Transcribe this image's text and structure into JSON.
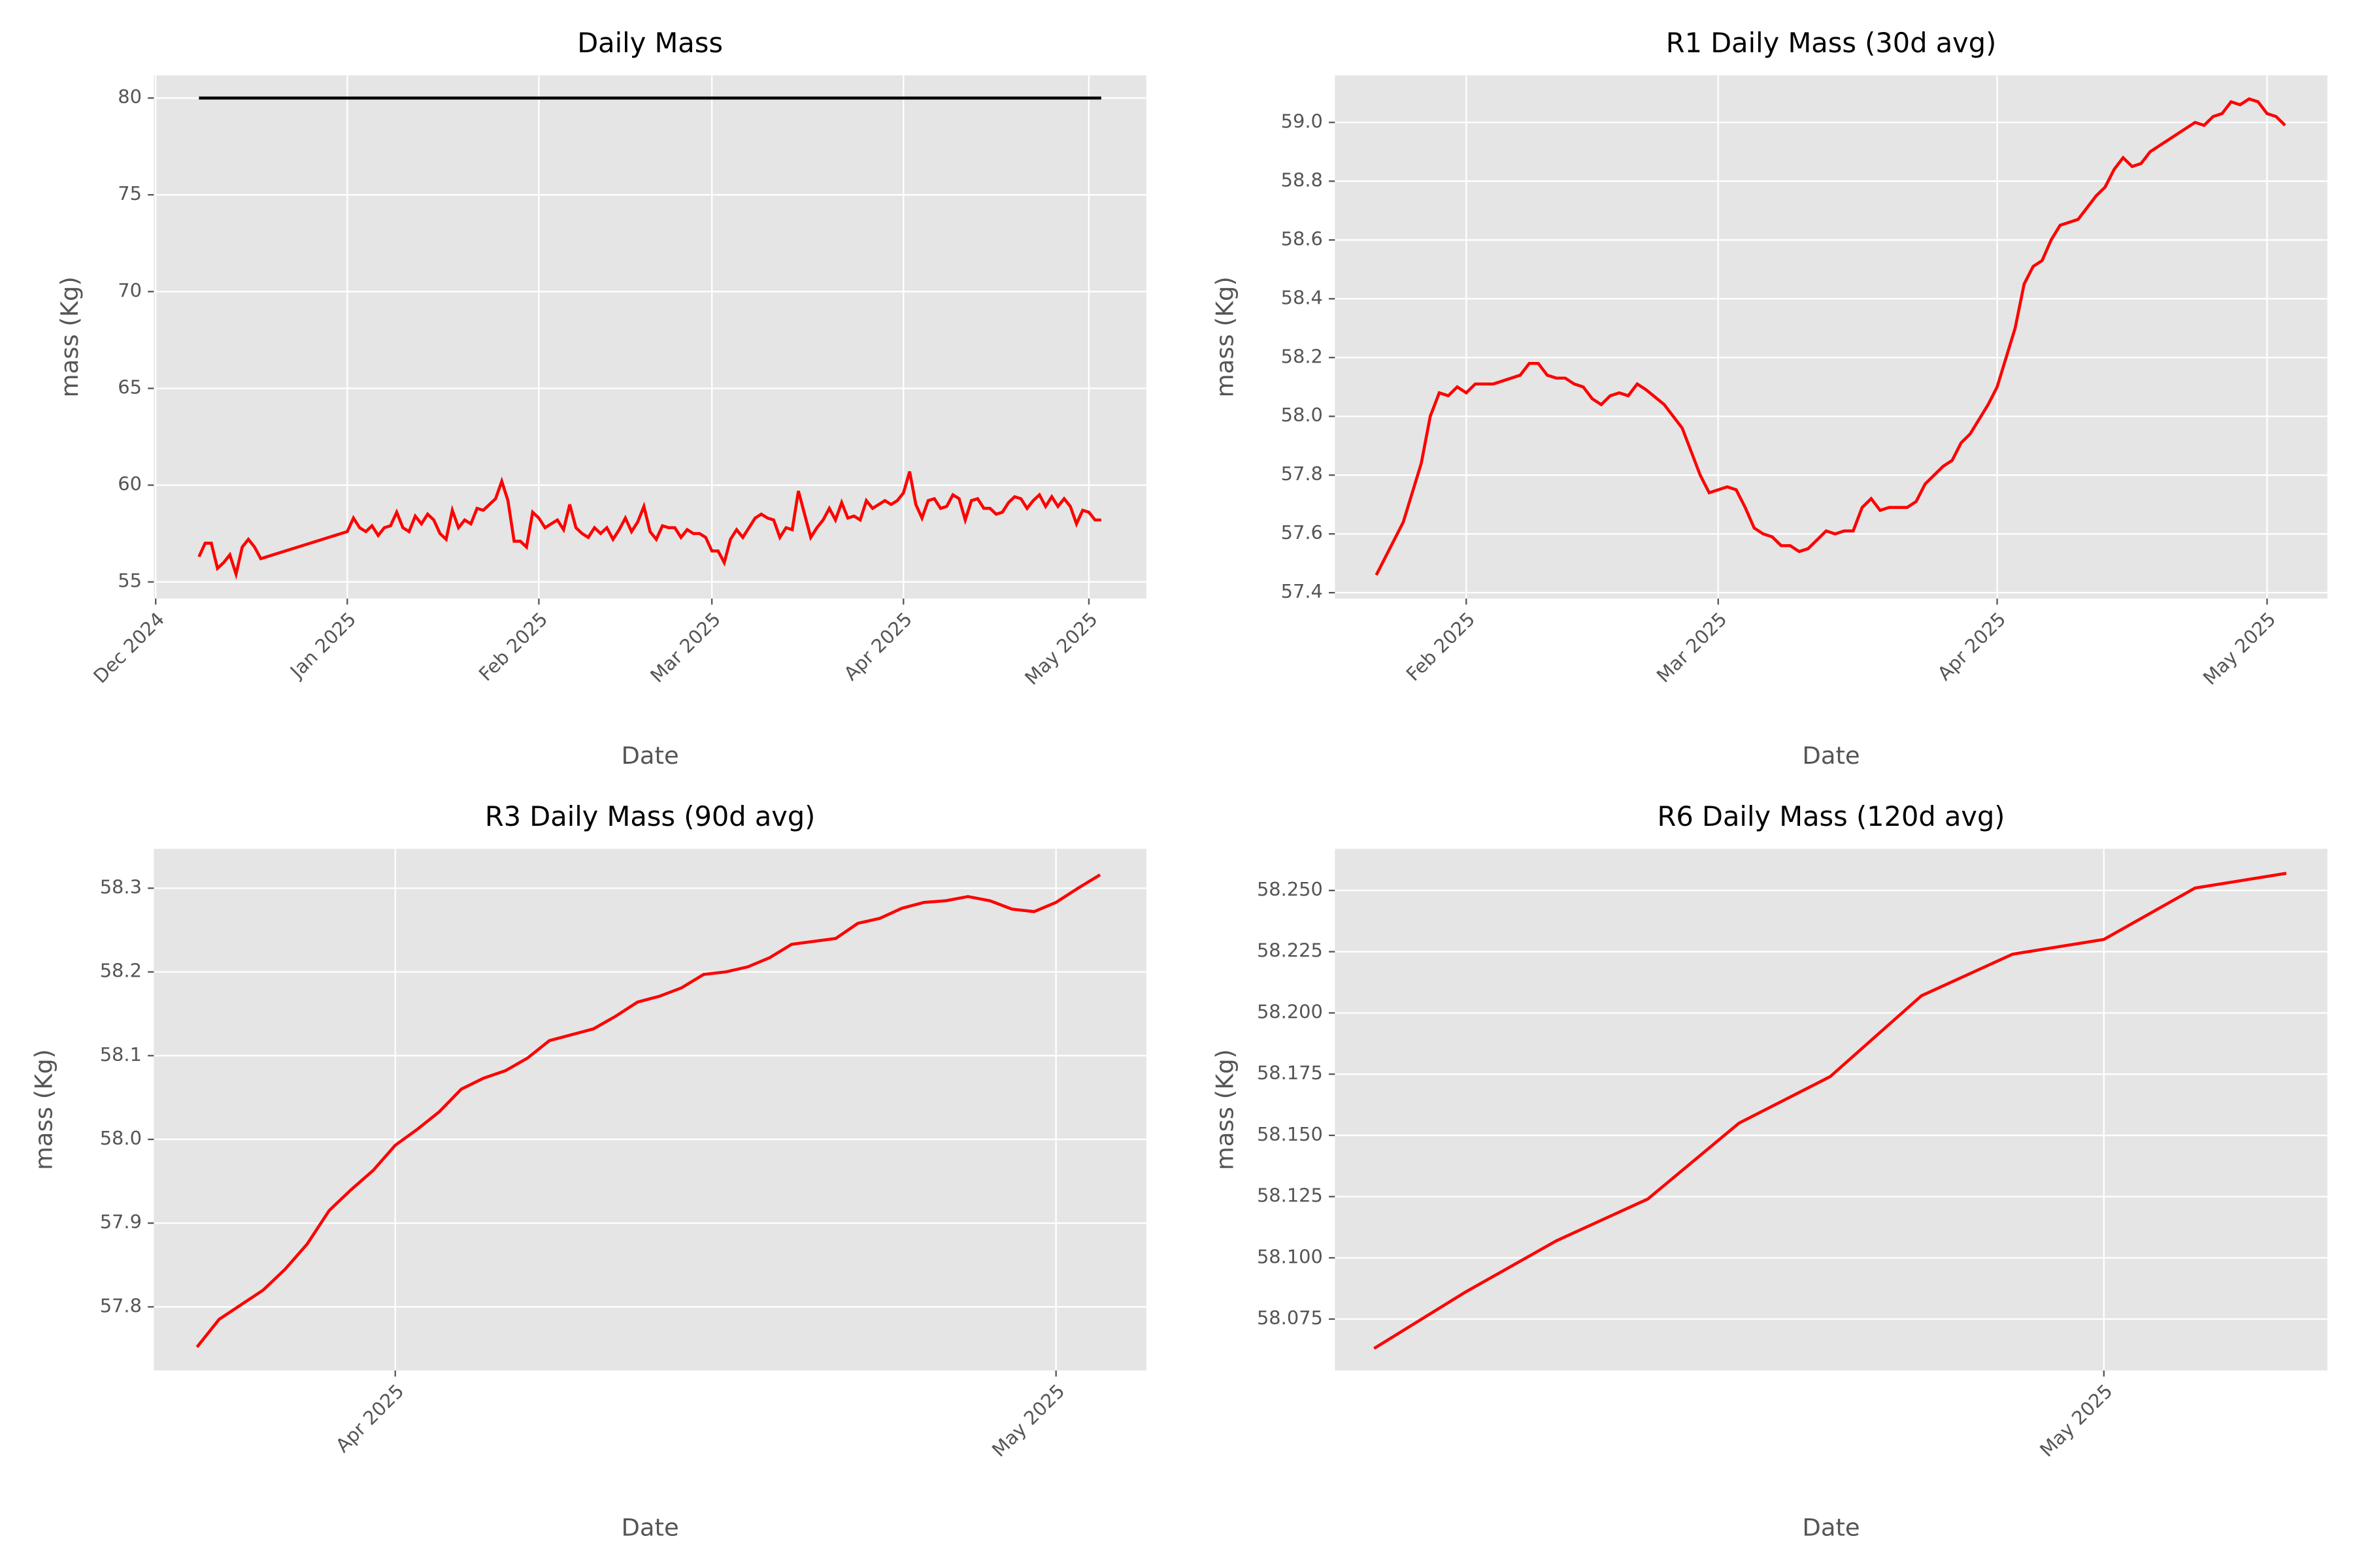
{
  "chart_data": [
    {
      "type": "line",
      "title": "Daily Mass",
      "xlabel": "Date",
      "ylabel": "mass (Kg)",
      "grid": true,
      "xlim": [
        -0.3,
        160.3
      ],
      "ylim": [
        54.14,
        81.17
      ],
      "xticks": [
        {
          "value": 0,
          "label": "Dec 2024"
        },
        {
          "value": 31,
          "label": "Jan 2025"
        },
        {
          "value": 62,
          "label": "Feb 2025"
        },
        {
          "value": 90,
          "label": "Mar 2025"
        },
        {
          "value": 121,
          "label": "Apr 2025"
        },
        {
          "value": 151,
          "label": "May 2025"
        }
      ],
      "yticks": [
        55,
        60,
        65,
        70,
        75,
        80
      ],
      "series": [
        {
          "color": "#000000",
          "x": [
            7,
            153
          ],
          "values": [
            80,
            80
          ]
        },
        {
          "color": "#ff0000",
          "x": [
            7,
            8,
            9,
            10,
            11,
            12,
            13,
            14,
            15,
            16,
            17,
            31,
            32,
            33,
            34,
            35,
            36,
            37,
            38,
            39,
            40,
            41,
            42,
            43,
            44,
            45,
            46,
            47,
            48,
            49,
            50,
            51,
            52,
            53,
            54,
            55,
            56,
            57,
            58,
            59,
            60,
            61,
            62,
            63,
            64,
            65,
            66,
            67,
            68,
            69,
            70,
            71,
            72,
            73,
            74,
            75,
            76,
            77,
            78,
            79,
            80,
            81,
            82,
            83,
            84,
            85,
            86,
            87,
            88,
            89,
            90,
            91,
            92,
            93,
            94,
            95,
            96,
            97,
            98,
            99,
            100,
            101,
            102,
            103,
            104,
            105,
            106,
            107,
            108,
            109,
            110,
            111,
            112,
            113,
            114,
            115,
            116,
            117,
            118,
            119,
            120,
            121,
            122,
            123,
            124,
            125,
            126,
            127,
            128,
            129,
            130,
            131,
            132,
            133,
            134,
            135,
            136,
            137,
            138,
            139,
            140,
            141,
            142,
            143,
            144,
            145,
            146,
            147,
            148,
            149,
            150,
            151,
            152,
            153
          ],
          "values": [
            56.3,
            57.0,
            57.0,
            55.7,
            56.0,
            56.4,
            55.4,
            56.8,
            57.2,
            56.8,
            56.2,
            57.6,
            58.3,
            57.8,
            57.6,
            57.9,
            57.4,
            57.8,
            57.9,
            58.6,
            57.8,
            57.6,
            58.4,
            58.0,
            58.5,
            58.2,
            57.5,
            57.2,
            58.7,
            57.8,
            58.2,
            58.0,
            58.8,
            58.7,
            59.0,
            59.3,
            60.2,
            59.2,
            57.1,
            57.1,
            56.8,
            58.6,
            58.3,
            57.8,
            58.0,
            58.2,
            57.7,
            59.0,
            57.8,
            57.5,
            57.3,
            57.8,
            57.5,
            57.8,
            57.2,
            57.7,
            58.3,
            57.6,
            58.1,
            58.9,
            57.6,
            57.2,
            57.9,
            57.8,
            57.8,
            57.3,
            57.7,
            57.5,
            57.5,
            57.3,
            56.6,
            56.6,
            56.0,
            57.2,
            57.7,
            57.3,
            57.8,
            58.3,
            58.5,
            58.3,
            58.2,
            57.3,
            57.8,
            57.7,
            59.7,
            58.5,
            57.3,
            57.8,
            58.2,
            58.8,
            58.2,
            59.1,
            58.3,
            58.4,
            58.2,
            59.2,
            58.8,
            59.0,
            59.2,
            59.0,
            59.2,
            59.6,
            60.7,
            59.0,
            58.3,
            59.2,
            59.3,
            58.8,
            58.9,
            59.5,
            59.3,
            58.2,
            59.2,
            59.3,
            58.8,
            58.8,
            58.5,
            58.6,
            59.1,
            59.4,
            59.3,
            58.8,
            59.2,
            59.5,
            58.9,
            59.4,
            58.9,
            59.3,
            58.9,
            58.0,
            58.7,
            58.6,
            58.2,
            58.2
          ]
        }
      ]
    },
    {
      "type": "line",
      "title": "R1 Daily Mass (30d avg)",
      "xlabel": "Date",
      "ylabel": "mass (Kg)",
      "grid": true,
      "xlim": [
        47.4,
        157.7
      ],
      "ylim": [
        57.38,
        59.16
      ],
      "xticks": [
        {
          "value": 62,
          "label": "Feb 2025"
        },
        {
          "value": 90,
          "label": "Mar 2025"
        },
        {
          "value": 121,
          "label": "Apr 2025"
        },
        {
          "value": 151,
          "label": "May 2025"
        }
      ],
      "yticks": [
        57.4,
        57.6,
        57.8,
        {
          "value": 58,
          "label": "58.0"
        },
        58.2,
        58.4,
        58.6,
        58.8,
        {
          "value": 59,
          "label": "59.0"
        }
      ],
      "series": [
        {
          "color": "#ff0000",
          "x": [
            52,
            55,
            57,
            58,
            59,
            60,
            61,
            62,
            63,
            65,
            66,
            68,
            69,
            70,
            71,
            72,
            73,
            74,
            75,
            76,
            77,
            78,
            79,
            80,
            81,
            82,
            84,
            86,
            87,
            88,
            89,
            90,
            91,
            92,
            93,
            94,
            95,
            96,
            97,
            98,
            99,
            100,
            101,
            102,
            103,
            104,
            105,
            106,
            107,
            108,
            109,
            110,
            111,
            112,
            113,
            114,
            115,
            116,
            117,
            118,
            120,
            121,
            122,
            123,
            124,
            125,
            126,
            127,
            128,
            129,
            130,
            131,
            132,
            133,
            134,
            135,
            136,
            137,
            138,
            139,
            140,
            141,
            142,
            143,
            144,
            145,
            146,
            147,
            148,
            149,
            150,
            151,
            152,
            153
          ],
          "values": [
            57.46,
            57.64,
            57.84,
            58.0,
            58.08,
            58.07,
            58.1,
            58.08,
            58.11,
            58.11,
            58.12,
            58.14,
            58.18,
            58.18,
            58.14,
            58.13,
            58.13,
            58.11,
            58.1,
            58.06,
            58.04,
            58.07,
            58.08,
            58.07,
            58.11,
            58.09,
            58.04,
            57.96,
            57.88,
            57.8,
            57.74,
            57.75,
            57.76,
            57.75,
            57.69,
            57.62,
            57.6,
            57.59,
            57.56,
            57.56,
            57.54,
            57.55,
            57.58,
            57.61,
            57.6,
            57.61,
            57.61,
            57.69,
            57.72,
            57.68,
            57.69,
            57.69,
            57.69,
            57.71,
            57.77,
            57.8,
            57.83,
            57.85,
            57.91,
            57.94,
            58.04,
            58.1,
            58.2,
            58.3,
            58.45,
            58.51,
            58.53,
            58.6,
            58.65,
            58.66,
            58.67,
            58.71,
            58.75,
            58.78,
            58.84,
            58.88,
            58.85,
            58.86,
            58.9,
            58.92,
            58.94,
            58.96,
            58.98,
            59.0,
            58.99,
            59.02,
            59.03,
            59.07,
            59.06,
            59.08,
            59.07,
            59.03,
            59.02,
            58.99
          ]
        }
      ]
    },
    {
      "type": "line",
      "title": "R3 Daily Mass (90d avg)",
      "xlabel": "Date",
      "ylabel": "mass (Kg)",
      "grid": true,
      "xlim": [
        110.04,
        155.1
      ],
      "ylim": [
        57.724,
        58.347
      ],
      "xticks": [
        {
          "value": 121,
          "label": "Apr 2025"
        },
        {
          "value": 151,
          "label": "May 2025"
        }
      ],
      "yticks": [
        57.8,
        57.9,
        {
          "value": 58,
          "label": "58.0"
        },
        58.1,
        58.2,
        58.3
      ],
      "series": [
        {
          "color": "#ff0000",
          "x": [
            112,
            113,
            115,
            116,
            117,
            118,
            119,
            120,
            121,
            122,
            123,
            124,
            125,
            126,
            127,
            128,
            130,
            131,
            132,
            133,
            134,
            135,
            136,
            137,
            138,
            139,
            141,
            142,
            143,
            144,
            145,
            146,
            147,
            148,
            149,
            150,
            151,
            152,
            153
          ],
          "values": [
            57.752,
            57.785,
            57.82,
            57.845,
            57.875,
            57.915,
            57.94,
            57.963,
            57.993,
            58.012,
            58.033,
            58.06,
            58.073,
            58.082,
            58.097,
            58.118,
            58.132,
            58.147,
            58.164,
            58.171,
            58.181,
            58.197,
            58.2,
            58.206,
            58.217,
            58.233,
            58.24,
            58.258,
            58.264,
            58.276,
            58.283,
            58.285,
            58.29,
            58.285,
            58.275,
            58.272,
            58.283,
            58.3,
            58.316
          ]
        }
      ]
    },
    {
      "type": "line",
      "title": "R6 Daily Mass (120d avg)",
      "xlabel": "Date",
      "ylabel": "mass (Kg)",
      "grid": true,
      "xlim": [
        142.57,
        153.45
      ],
      "ylim": [
        58.054,
        58.267
      ],
      "xticks": [
        {
          "value": 151,
          "label": "May 2025"
        }
      ],
      "yticks": [
        58.075,
        {
          "value": 58.1,
          "label": "58.100"
        },
        58.125,
        {
          "value": 58.15,
          "label": "58.150"
        },
        58.175,
        {
          "value": 58.2,
          "label": "58.200"
        },
        58.225,
        {
          "value": 58.25,
          "label": "58.250"
        }
      ],
      "series": [
        {
          "color": "#ff0000",
          "x": [
            143,
            144,
            145,
            146,
            147,
            148,
            149,
            150,
            151,
            152,
            153
          ],
          "values": [
            58.063,
            58.086,
            58.107,
            58.124,
            58.155,
            58.174,
            58.207,
            58.224,
            58.23,
            58.251,
            58.257
          ]
        }
      ]
    }
  ]
}
